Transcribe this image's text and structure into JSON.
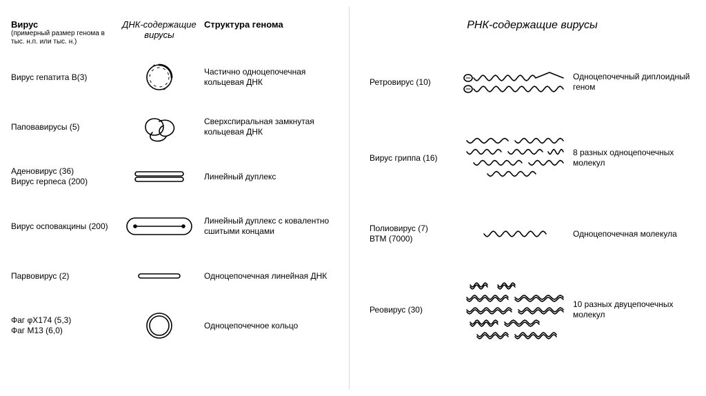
{
  "left": {
    "header": {
      "virus_title": "Вирус",
      "virus_sub": "(примерный размер генома в тыс. н.п. или тыс. н.)",
      "mid_title": "ДНК-содержащие вирусы",
      "struct_title": "Структура генома"
    },
    "rows": [
      {
        "virus": "Вирус гепатита B(3)",
        "struct": "Частично одноцепочечная кольцевая ДНК",
        "icon": "partial-ring"
      },
      {
        "virus": "Паповавирусы (5)",
        "struct": "Сверхспиральная замкнутая кольцевая ДНК",
        "icon": "supercoil"
      },
      {
        "virus": "Аденовирус (36)\nВирус герпеса (200)",
        "struct": "Линейный дуплекс",
        "icon": "linear-duplex"
      },
      {
        "virus": "Вирус осповакцины (200)",
        "struct": "Линейный дуплекс с ковалентно сшитыми концами",
        "icon": "linear-closed"
      },
      {
        "virus": "Парвовирус (2)",
        "struct": "Одноцепочечная линейная ДНК",
        "icon": "linear-single"
      },
      {
        "virus": "Фаг φX174 (5,3)\nФаг M13 (6,0)",
        "struct": "Одноцепочечное кольцо",
        "icon": "ring"
      }
    ]
  },
  "right": {
    "header": {
      "mid_title": "РНК-содержащие вирусы"
    },
    "rows": [
      {
        "virus": "Ретровирус  (10)",
        "struct": "Одноцепочечный диплоидный геном",
        "icon": "retro"
      },
      {
        "virus": "Вирус гриппа (16)",
        "struct": "8 разных одноцепочечных молекул",
        "icon": "flu8"
      },
      {
        "virus": "Полиовирус (7)\nВТМ (7000)",
        "struct": "Одноцепочечная молекула",
        "icon": "polio"
      },
      {
        "virus": "Реовирус (30)",
        "struct": "10 разных двуцепочечных молекул",
        "icon": "reo10"
      }
    ]
  },
  "style": {
    "stroke": "#000000",
    "stroke_width": 1.6,
    "background": "#ffffff",
    "font_body": 12,
    "font_header": 13
  }
}
